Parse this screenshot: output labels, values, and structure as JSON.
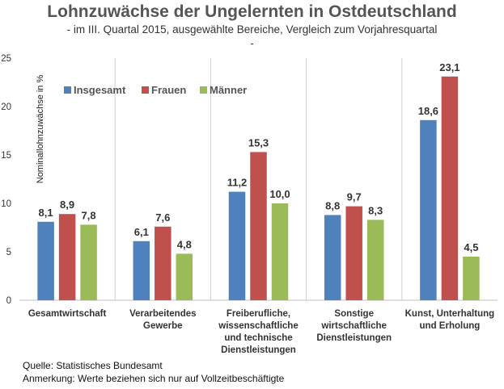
{
  "title": "Lohnzuwächse der Ungelernten in Ostdeutschland",
  "subtitle": "- im III. Quartal 2015, ausgewählte Bereiche, Vergleich zum Vorjahresquartal",
  "subtitle_line2": "-",
  "source": "Quelle: Statistisches Bundesamt",
  "remark": "Anmerkung: Werte beziehen sich nur auf Vollzeitbeschäftigte",
  "colors": {
    "Insgesamt": "#4f81bd",
    "Frauen": "#c0504d",
    "Männer": "#9bbb59"
  },
  "chart_data": {
    "type": "bar",
    "ylabel": "Nominallohnzuwächse in %",
    "ylim": [
      0,
      25
    ],
    "yticks": [
      0,
      5,
      10,
      15,
      20,
      25
    ],
    "legend_position": "top-left",
    "categories": [
      [
        "Gesamtwirtschaft"
      ],
      [
        "Verarbeitendes",
        "Gewerbe"
      ],
      [
        "Freiberufliche,",
        "wissenschaftliche",
        "und technische",
        "Dienstleistungen"
      ],
      [
        "Sonstige",
        "wirtschaftliche",
        "Dienstleistungen"
      ],
      [
        "Kunst, Unterhaltung",
        "und Erholung"
      ]
    ],
    "series": [
      {
        "name": "Insgesamt",
        "values": [
          8.1,
          6.1,
          11.2,
          8.8,
          18.6
        ],
        "labels": [
          "8,1",
          "6,1",
          "11,2",
          "8,8",
          "18,6"
        ]
      },
      {
        "name": "Frauen",
        "values": [
          8.9,
          7.6,
          15.3,
          9.7,
          23.1
        ],
        "labels": [
          "8,9",
          "7,6",
          "15,3",
          "9,7",
          "23,1"
        ]
      },
      {
        "name": "Männer",
        "values": [
          7.8,
          4.8,
          10.0,
          8.3,
          4.5
        ],
        "labels": [
          "7,8",
          "4,8",
          "10,0",
          "8,3",
          "4,5"
        ]
      }
    ]
  }
}
